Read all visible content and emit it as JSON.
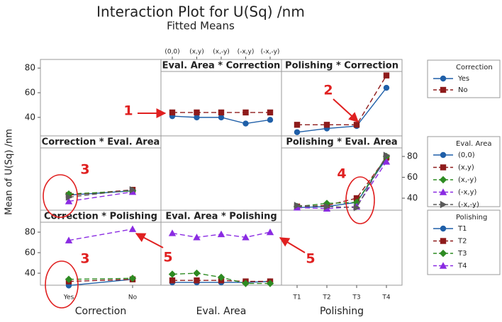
{
  "chart_data": {
    "type": "interaction-matrix",
    "title": "Interaction Plot for U(Sq) /nm",
    "subtitle": "Fitted Means",
    "y_label": "Mean of U(Sq) /nm",
    "factors": [
      {
        "name": "Correction",
        "levels": [
          "Yes",
          "No"
        ]
      },
      {
        "name": "Eval. Area",
        "levels": [
          "(0,0)",
          "(x,y)",
          "(x,-y)",
          "(-x,y)",
          "(-x,-y)"
        ]
      },
      {
        "name": "Polishing",
        "levels": [
          "T1",
          "T2",
          "T3",
          "T4"
        ]
      }
    ],
    "rows": [
      {
        "ylim": [
          25,
          87
        ],
        "yticks": [
          40,
          60,
          80
        ],
        "styles": [
          {
            "color": "#1f5fa8",
            "dash": false,
            "marker": "circle"
          },
          {
            "color": "#8e1b1b",
            "dash": true,
            "marker": "square"
          }
        ],
        "cells": [
          null,
          {
            "title": "Eval. Area * Correction",
            "values": [
              [
                41,
                40,
                40,
                35,
                38
              ],
              [
                44,
                44,
                44,
                44,
                44
              ]
            ]
          },
          {
            "title": "Polishing * Correction",
            "values": [
              [
                28,
                31,
                33,
                64
              ],
              [
                34,
                34,
                34,
                74
              ]
            ]
          }
        ]
      },
      {
        "ylim": [
          28.5,
          99.7
        ],
        "yticks": [
          40,
          60,
          80
        ],
        "styles": [
          {
            "color": "#1f5fa8",
            "dash": false,
            "marker": "circle"
          },
          {
            "color": "#8e1b1b",
            "dash": true,
            "marker": "square"
          },
          {
            "color": "#2e8b22",
            "dash": true,
            "marker": "diamond"
          },
          {
            "color": "#8a2be2",
            "dash": true,
            "marker": "triangle"
          },
          {
            "color": "#595959",
            "dash": true,
            "marker": "right-triangle"
          }
        ],
        "cells": [
          {
            "title": "Correction * Eval. Area",
            "values": [
              [
                43,
                47
              ],
              [
                43,
                48
              ],
              [
                44,
                47
              ],
              [
                37,
                46
              ],
              [
                41,
                48
              ]
            ]
          },
          null,
          {
            "title": "Polishing * Eval. Area",
            "values": [
              [
                31,
                32,
                36,
                78
              ],
              [
                32,
                33,
                40,
                79
              ],
              [
                32,
                35,
                36,
                80
              ],
              [
                31,
                30,
                32,
                75
              ],
              [
                33,
                32,
                31,
                81
              ]
            ]
          }
        ]
      },
      {
        "ylim": [
          28.3,
          101.4
        ],
        "yticks": [
          40,
          60,
          80
        ],
        "styles": [
          {
            "color": "#1f5fa8",
            "dash": false,
            "marker": "circle"
          },
          {
            "color": "#8e1b1b",
            "dash": true,
            "marker": "square"
          },
          {
            "color": "#2e8b22",
            "dash": true,
            "marker": "diamond"
          },
          {
            "color": "#8a2be2",
            "dash": true,
            "marker": "triangle"
          }
        ],
        "cells": [
          {
            "title": "Correction * Polishing",
            "values": [
              [
                28,
                34
              ],
              [
                32,
                34
              ],
              [
                34,
                35
              ],
              [
                72,
                83
              ]
            ]
          },
          {
            "title": "Eval. Area * Polishing",
            "values": [
              [
                31,
                31,
                31,
                31,
                32
              ],
              [
                33,
                33,
                33,
                32,
                32
              ],
              [
                39,
                40,
                36,
                30,
                30
              ],
              [
                79,
                75,
                78,
                75,
                80
              ]
            ]
          },
          null
        ]
      }
    ],
    "annotations": [
      "1",
      "2",
      "3",
      "4",
      "3",
      "5",
      "5"
    ]
  }
}
